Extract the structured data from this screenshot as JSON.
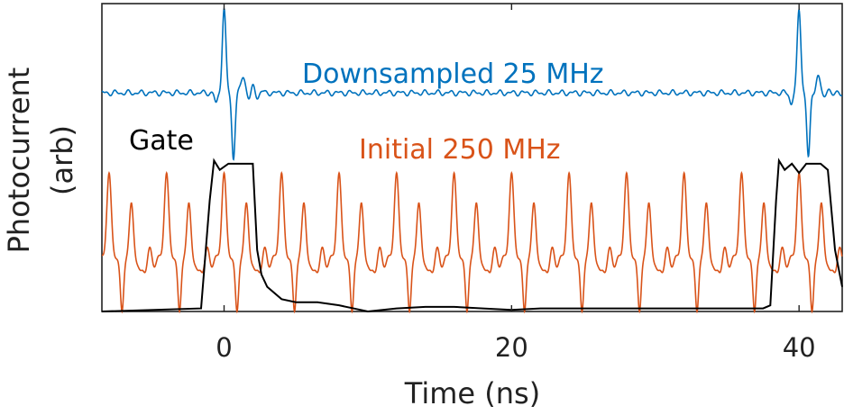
{
  "chart_data": {
    "type": "line",
    "title": "",
    "xlabel": "Time (ns)",
    "ylabel": [
      "Photocurrent",
      "(arb)"
    ],
    "xlim": [
      -8.5,
      43
    ],
    "x_ticks": [
      0,
      20,
      40
    ],
    "x_tick_labels": [
      "0",
      "20",
      "40"
    ],
    "y_ticks_shown": false,
    "grid": false,
    "legend": "none",
    "annotations": [
      {
        "text": "Downsampled 25 MHz",
        "series": "downsampled",
        "color": "#0072BD"
      },
      {
        "text": "Gate",
        "series": "gate",
        "color": "#000000"
      },
      {
        "text": "Initial 250 MHz",
        "series": "initial",
        "color": "#D95319"
      }
    ],
    "series": [
      {
        "key": "downsampled",
        "color": "#0072BD",
        "baseline": 0.71,
        "pulse_times_ns": [
          0,
          40
        ],
        "pulse_peak": 0.98,
        "pulse_trough": 0.5
      },
      {
        "key": "initial",
        "color": "#D95319",
        "baseline": 0.17,
        "period_ns": 4,
        "first_pulse_ns": -8,
        "pulse_peak": 0.45,
        "pulse_trough": 0.0
      },
      {
        "key": "gate",
        "color": "#000000",
        "x": [
          -8.5,
          -1.6,
          -1.0,
          -0.7,
          -0.3,
          0.3,
          1.0,
          2.0,
          2.3,
          2.6,
          3.0,
          4.0,
          5.0,
          6.5,
          8.0,
          9.0,
          10.0,
          12.0,
          14.0,
          16.0,
          18.0,
          20.0,
          22.0,
          24.0,
          26.0,
          28.0,
          30.0,
          32.0,
          34.0,
          36.0,
          37.5,
          38.0,
          38.4,
          38.6,
          39.0,
          39.5,
          40.0,
          40.5,
          41.0,
          41.5,
          42.0,
          42.5,
          43.0
        ],
        "y": [
          0.0,
          0.01,
          0.36,
          0.49,
          0.46,
          0.48,
          0.48,
          0.48,
          0.2,
          0.12,
          0.08,
          0.04,
          0.03,
          0.03,
          0.02,
          0.01,
          0.0,
          0.01,
          0.015,
          0.015,
          0.01,
          0.005,
          0.01,
          0.01,
          0.01,
          0.01,
          0.01,
          0.01,
          0.01,
          0.01,
          0.01,
          0.02,
          0.36,
          0.49,
          0.46,
          0.48,
          0.45,
          0.48,
          0.48,
          0.48,
          0.46,
          0.2,
          0.08
        ]
      }
    ]
  }
}
